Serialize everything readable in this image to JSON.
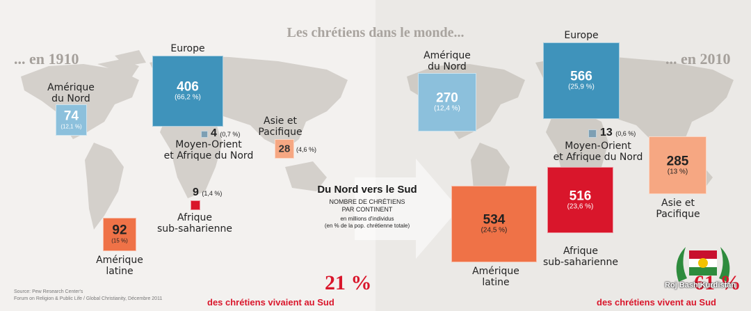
{
  "title": "Les chrétiens dans le monde...",
  "left_year": "... en 1910",
  "right_year": "... en 2010",
  "center": {
    "title": "Du Nord vers le Sud",
    "line1": "NOMBRE DE CHRÉTIENS",
    "line2": "PAR CONTINENT",
    "line3": "en millions d'individus",
    "line4": "(en % de la pop. chrétienne totale)"
  },
  "y1910": {
    "europe": {
      "label": "Europe",
      "value": "406",
      "pct": "(66,2 %)"
    },
    "north_america": {
      "label1": "Amérique",
      "label2": "du Nord",
      "value": "74",
      "pct": "(12,1 %)"
    },
    "mena": {
      "label1": "Moyen-Orient",
      "label2": "et Afrique du Nord",
      "value": "4",
      "pct": "(0,7 %)"
    },
    "asia": {
      "label1": "Asie et",
      "label2": "Pacifique",
      "value": "28",
      "pct": "(4,6 %)"
    },
    "ssa": {
      "label1": "Afrique",
      "label2": "sub-saharienne",
      "value": "9",
      "pct": "(1,4 %)"
    },
    "latin_america": {
      "label1": "Amérique",
      "label2": "latine",
      "value": "92",
      "pct": "(15 %)"
    }
  },
  "y2010": {
    "europe": {
      "label": "Europe",
      "value": "566",
      "pct": "(25,9 %)"
    },
    "north_america": {
      "label1": "Amérique",
      "label2": "du Nord",
      "value": "270",
      "pct": "(12,4 %)"
    },
    "mena": {
      "label1": "Moyen-Orient",
      "label2": "et Afrique du Nord",
      "value": "13",
      "pct": "(0,6 %)"
    },
    "asia": {
      "label1": "Asie et",
      "label2": "Pacifique",
      "value": "285",
      "pct": "(13 %)"
    },
    "ssa": {
      "label1": "Afrique",
      "label2": "sub-saharienne",
      "value": "516",
      "pct": "(23,6 %)"
    },
    "latin_america": {
      "label1": "Amérique",
      "label2": "latine",
      "value": "534",
      "pct": "(24,5 %)"
    }
  },
  "source": {
    "line1": "Source: Pew Research Center's",
    "line2": "Forum on Religion & Public Life / Global Christianity, Décembre 2011"
  },
  "south_1910": {
    "pct": "21 %",
    "text": "des chrétiens vivaient au Sud"
  },
  "south_2010": {
    "pct": "61 %",
    "text": "des chrétiens vivent au Sud"
  },
  "watermark": "Roj Bash Kurdistan",
  "colors": {
    "europe": "#3f93bb",
    "north_america": "#8cc0dc",
    "mena": "#7d9fb3",
    "asia": "#f6a782",
    "latin_america": "#ef7247",
    "ssa": "#d9162b",
    "accent": "#d9162b"
  }
}
